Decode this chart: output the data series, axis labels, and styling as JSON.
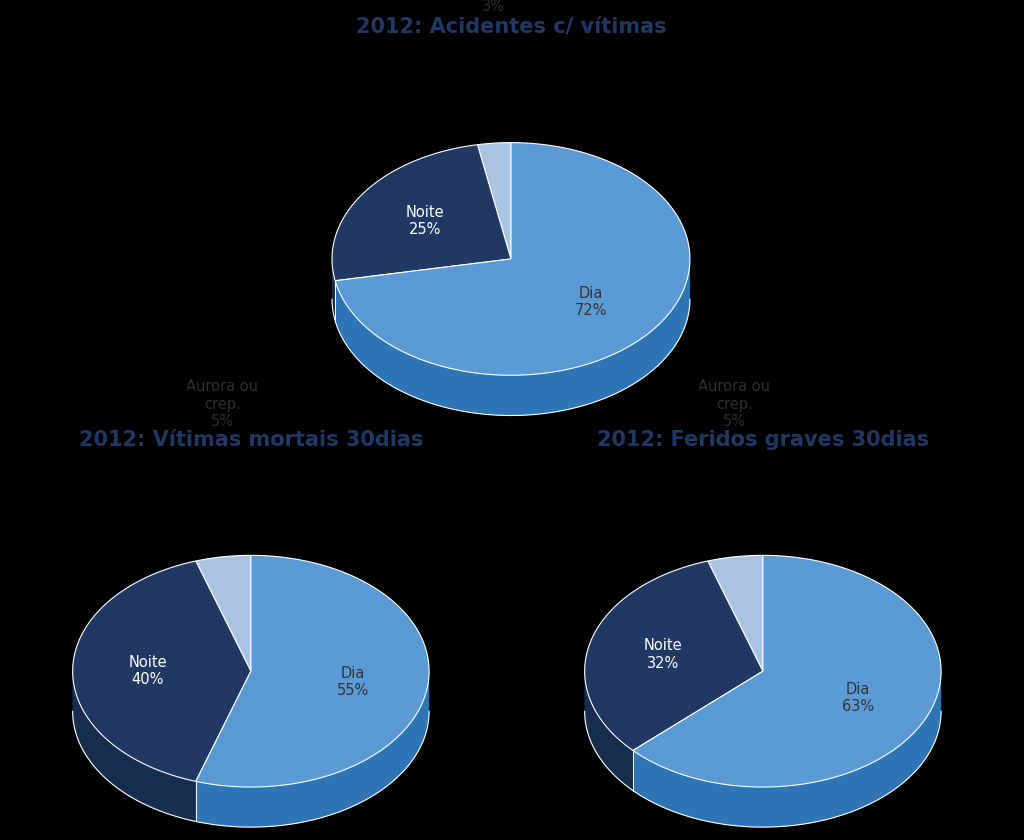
{
  "charts": [
    {
      "title": "2012: Acidentes c/ vítimas",
      "values": [
        72,
        25,
        3
      ],
      "labels": [
        "Dia",
        "Noite",
        "Aurora ou\ncrep."
      ],
      "pcts": [
        "72%",
        "25%",
        "3%"
      ],
      "colors_top": [
        "#5B9BD5",
        "#1F3864",
        "#A9C4E2"
      ],
      "colors_side": [
        "#2E75B6",
        "#162D50",
        "#7FAFD4"
      ],
      "label_colors": [
        "#333333",
        "#ffffff",
        "#333333"
      ],
      "start_angle": 90
    },
    {
      "title": "2012: Vítimas mortais 30dias",
      "values": [
        55,
        40,
        5
      ],
      "labels": [
        "Dia",
        "Noite",
        "Aurora ou\ncrep."
      ],
      "pcts": [
        "55%",
        "40%",
        "5%"
      ],
      "colors_top": [
        "#5B9BD5",
        "#1F3864",
        "#A9C4E2"
      ],
      "colors_side": [
        "#2E75B6",
        "#162D50",
        "#7FAFD4"
      ],
      "label_colors": [
        "#333333",
        "#ffffff",
        "#333333"
      ],
      "start_angle": 90
    },
    {
      "title": "2012: Feridos graves 30dias",
      "values": [
        63,
        32,
        5
      ],
      "labels": [
        "Dia",
        "Noite",
        "Aurora ou\ncrep."
      ],
      "pcts": [
        "63%",
        "32%",
        "5%"
      ],
      "colors_top": [
        "#5B9BD5",
        "#1F3864",
        "#A9C4E2"
      ],
      "colors_side": [
        "#2E75B6",
        "#162D50",
        "#7FAFD4"
      ],
      "label_colors": [
        "#333333",
        "#ffffff",
        "#333333"
      ],
      "start_angle": 90
    }
  ],
  "background_color": "#000000",
  "white_bg": "#ffffff",
  "title_color": "#1F3864",
  "title_fontsize": 15,
  "label_fontsize": 10.5
}
